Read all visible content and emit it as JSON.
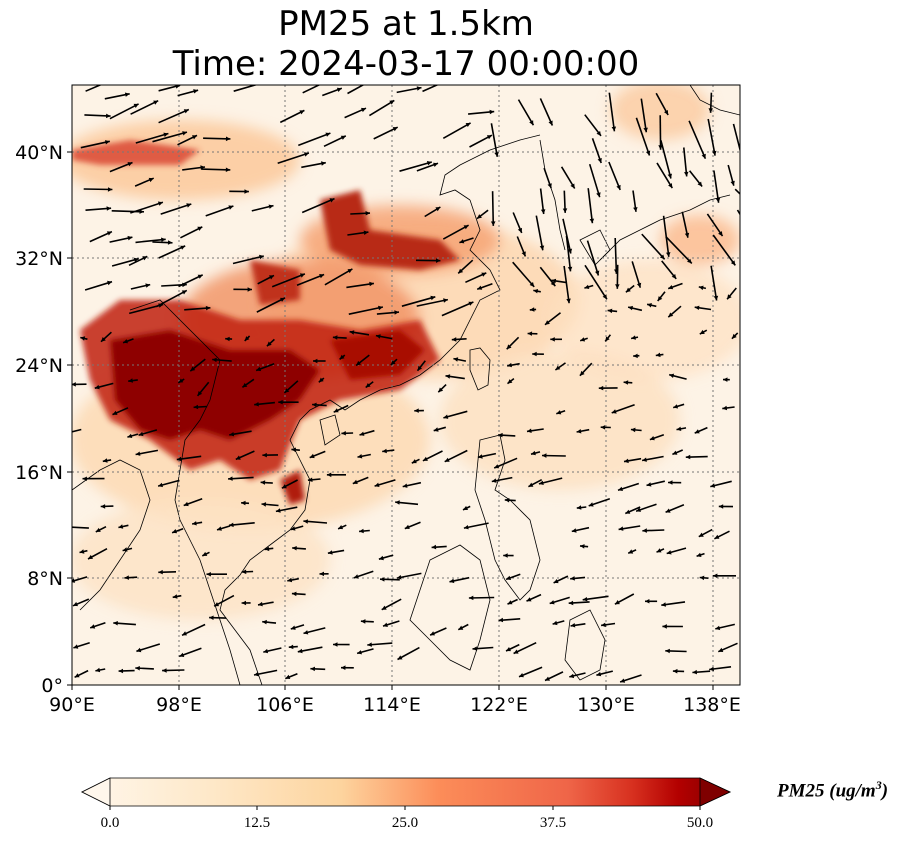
{
  "title_line1": "PM25 at 1.5km",
  "title_line2": "Time: 2024-03-17 00:00:00",
  "map": {
    "lon_range": [
      90,
      140
    ],
    "lat_range": [
      0,
      45
    ],
    "lon_ticks": [
      "90°E",
      "98°E",
      "106°E",
      "114°E",
      "122°E",
      "130°E",
      "138°E"
    ],
    "lat_ticks": [
      "0°",
      "8°N",
      "16°N",
      "24°N",
      "32°N",
      "40°N"
    ],
    "gridlines": true,
    "coastlines": true
  },
  "colorbar": {
    "label_main": "PM25 (ug/m",
    "label_sup": "3",
    "label_end": ")",
    "ticks": [
      "0.0",
      "12.5",
      "25.0",
      "37.5",
      "50.0"
    ],
    "range": [
      0,
      50
    ],
    "extend": "both",
    "colormap": [
      "#fff7ec",
      "#fdd49e",
      "#fc8d59",
      "#d7301f",
      "#b30000",
      "#7f0000"
    ]
  }
}
